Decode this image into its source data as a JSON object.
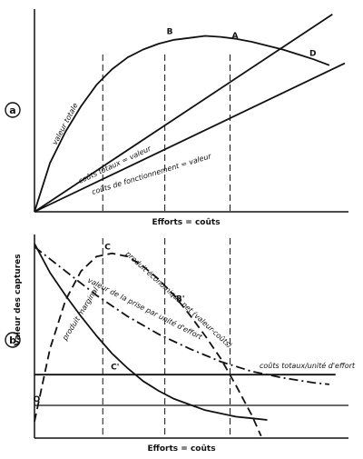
{
  "chart_data": {
    "type": "line",
    "ylabel": "Valeur des captures",
    "panels": [
      {
        "panel": "a",
        "xlabel": "Efforts = coûts",
        "xlim": [
          0,
          10
        ],
        "ylim": [
          0,
          10
        ],
        "series": [
          {
            "name": "valeur totale",
            "style": "solid",
            "points": [
              [
                0,
                0
              ],
              [
                0.5,
                2.5
              ],
              [
                1,
                4.1
              ],
              [
                1.5,
                5.4
              ],
              [
                2,
                6.5
              ],
              [
                2.5,
                7.3
              ],
              [
                3,
                7.9
              ],
              [
                3.5,
                8.3
              ],
              [
                4,
                8.6
              ],
              [
                4.5,
                8.8
              ],
              [
                5,
                8.9
              ],
              [
                5.5,
                9.0
              ],
              [
                6,
                8.95
              ],
              [
                6.5,
                8.85
              ],
              [
                7,
                8.7
              ],
              [
                7.5,
                8.5
              ],
              [
                8,
                8.3
              ],
              [
                8.5,
                8.05
              ],
              [
                9,
                7.8
              ],
              [
                9.5,
                7.5
              ]
            ]
          },
          {
            "name": "coûts totaux = valeur",
            "style": "solid",
            "points": [
              [
                0,
                0
              ],
              [
                9.6,
                10.1
              ]
            ]
          },
          {
            "name": "coûts de fonctionnement = valeur",
            "style": "solid",
            "points": [
              [
                0,
                0
              ],
              [
                10,
                7.6
              ]
            ]
          }
        ],
        "guides": [
          {
            "x": 2.2
          },
          {
            "x": 4.2
          },
          {
            "x": 6.3
          }
        ],
        "annotations": [
          {
            "text": "B",
            "x": 4.2,
            "y": 8.9
          },
          {
            "text": "A",
            "x": 6.3,
            "y": 8.7
          },
          {
            "text": "D",
            "x": 8.8,
            "y": 7.8
          }
        ]
      },
      {
        "panel": "b",
        "xlabel": "Efforts = coûts",
        "xlim": [
          0,
          10
        ],
        "ylim": [
          -1,
          10
        ],
        "series": [
          {
            "name": "produit marginal",
            "style": "solid",
            "points": [
              [
                0,
                10
              ],
              [
                0.5,
                8.2
              ],
              [
                1,
                6.8
              ],
              [
                1.5,
                5.5
              ],
              [
                2,
                4.3
              ],
              [
                2.5,
                3.2
              ],
              [
                3,
                2.3
              ],
              [
                3.5,
                1.5
              ],
              [
                4,
                0.9
              ],
              [
                4.5,
                0.4
              ],
              [
                5,
                0.05
              ],
              [
                5.5,
                -0.3
              ],
              [
                6,
                -0.5
              ],
              [
                6.5,
                -0.7
              ],
              [
                7,
                -0.8
              ],
              [
                7.5,
                -0.9
              ]
            ]
          },
          {
            "name": "produit économique net (valeur-coûts)",
            "style": "dash",
            "points": [
              [
                0,
                -1
              ],
              [
                0.5,
                3.5
              ],
              [
                1,
                6.5
              ],
              [
                1.5,
                8.3
              ],
              [
                2,
                9.2
              ],
              [
                2.5,
                9.4
              ],
              [
                3,
                9.2
              ],
              [
                3.5,
                8.6
              ],
              [
                4,
                7.8
              ],
              [
                4.5,
                6.8
              ],
              [
                5,
                5.6
              ],
              [
                5.5,
                4.3
              ],
              [
                6,
                2.9
              ],
              [
                6.5,
                1.2
              ],
              [
                7,
                -0.6
              ],
              [
                7.3,
                -1.9
              ]
            ]
          },
          {
            "name": "valeur de la prise par unité d'effort",
            "style": "dashdot",
            "points": [
              [
                0,
                9.8
              ],
              [
                1,
                8.3
              ],
              [
                2,
                6.8
              ],
              [
                3,
                5.5
              ],
              [
                4,
                4.4
              ],
              [
                5,
                3.5
              ],
              [
                6,
                2.7
              ],
              [
                7,
                2.1
              ],
              [
                8,
                1.7
              ],
              [
                9,
                1.4
              ],
              [
                9.5,
                1.3
              ]
            ]
          },
          {
            "name": "coûts totaux/unité d'effort",
            "style": "solid",
            "points": [
              [
                0,
                1.9
              ],
              [
                9.7,
                1.9
              ]
            ]
          }
        ],
        "guides": [
          {
            "x": 2.2
          },
          {
            "x": 4.2
          },
          {
            "x": 6.3
          }
        ],
        "annotations": [
          {
            "text": "C",
            "x": 2.2,
            "y": 9.4
          },
          {
            "text": "B'",
            "x": 4.5,
            "y": 6.2
          },
          {
            "text": "C'",
            "x": 2.4,
            "y": 2.0
          },
          {
            "text": "O",
            "x": -0.1,
            "y": 0
          }
        ]
      }
    ]
  }
}
